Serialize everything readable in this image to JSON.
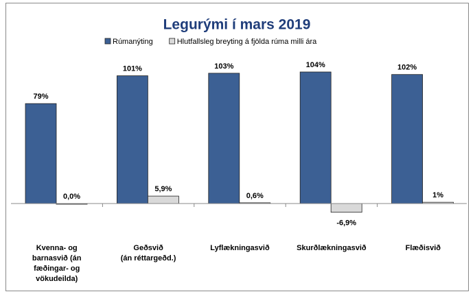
{
  "chart_data": {
    "type": "bar",
    "title": "Legurými í mars 2019",
    "categories": [
      "Kvenna- og\nbarnasvið  (án\nfæðingar- og\nvökudeilda)",
      "Geðsvið\n(án réttargeðd.)",
      "Lyflækningasvið",
      "Skurðlækningasvið",
      "Flæðisvið"
    ],
    "series": [
      {
        "name": "Rúmanýting",
        "color": "#3c6094",
        "values": [
          79,
          101,
          103,
          104,
          102
        ],
        "value_labels": [
          "79%",
          "101%",
          "103%",
          "104%",
          "102%"
        ]
      },
      {
        "name": "Hlutfallsleg breyting á fjölda rúma milli ára",
        "color": "#d9d9d9",
        "values": [
          0.0,
          5.9,
          0.6,
          -6.9,
          1
        ],
        "value_labels": [
          "0,0%",
          "5,9%",
          "0,6%",
          "-6,9%",
          "1%"
        ]
      }
    ]
  }
}
